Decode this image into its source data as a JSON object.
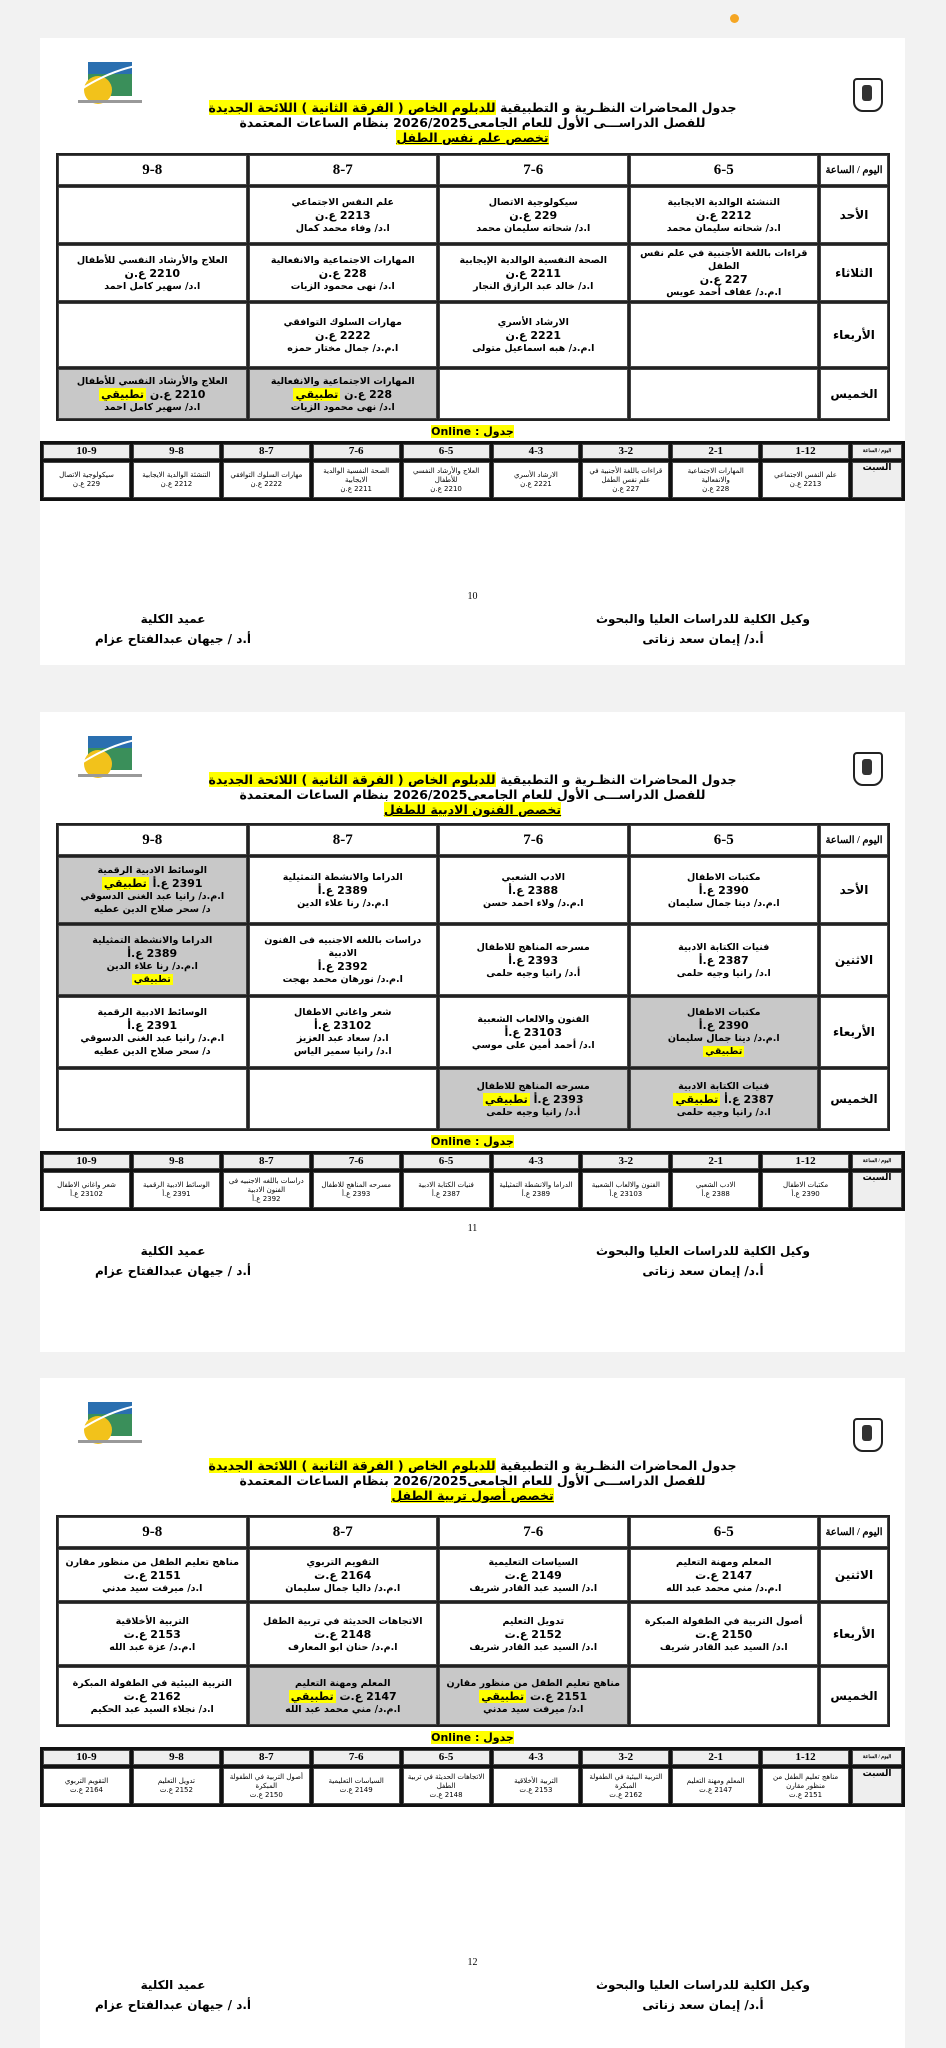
{
  "common": {
    "title_line1_a": "جدول المحاضرات النظـرية و التطبيقية ",
    "title_line1_b": "للدبلوم الخاص ( الفرقة الثانية ) اللائحة الجديدة",
    "title_line2": "للفصل الدراســـى الأول للعام الجامعى2026/2025 بنظام الساعات المعتمدة",
    "corner": "اليوم / الساعة",
    "main_slots": [
      "6-5",
      "7-6",
      "8-7",
      "9-8"
    ],
    "online_label": "جدول : Online",
    "online_corner": "اليوم / الساعة",
    "online_day": "السبت",
    "online_slots": [
      "1-12",
      "2-1",
      "3-2",
      "4-3",
      "6-5",
      "7-6",
      "8-7",
      "9-8",
      "10-9"
    ],
    "sig_right_title": "وكيل الكلية للدراسات العليا والبحوث",
    "sig_right_name": "أ.د/ إيمان سعد زناتى",
    "sig_left_title": "عميد الكلية",
    "sig_left_name": "أ.د / جيهان عبدالفتاح عزام",
    "practical_tag": "تطبيقي",
    "colors": {
      "highlight": "#ffff00",
      "shaded_cell": "#c8c8c8",
      "notification_dot": "#f5a623"
    }
  },
  "pages": [
    {
      "page_number": "10",
      "specialization": "تخصص علم نفس الطفل",
      "rows": [
        {
          "day": "الأحد",
          "cells": [
            {
              "course": "التنشئة الوالدية الايجابية",
              "code": "2212 ع.ن",
              "instructors": [
                "ا.د/ شحاته سليمان محمد"
              ]
            },
            {
              "course": "سيكولوجية الاتصال",
              "code": "229 ع.ن",
              "instructors": [
                "ا.د/ شحاته سليمان محمد"
              ]
            },
            {
              "course": "علم النفس الاجتماعي",
              "code": "2213 ع.ن",
              "instructors": [
                "ا.د/ وفاء محمد كمال"
              ]
            },
            {}
          ]
        },
        {
          "day": "الثلاثاء",
          "cells": [
            {
              "course": "قراءات باللغة الأجنبية في علم نفس الطفل",
              "code": "227 ع.ن",
              "instructors": [
                "ا.م.د/ عفاف أحمد عويس"
              ]
            },
            {
              "course": "الصحة النفسية الوالدية الإيجابية",
              "code": "2211 ع.ن",
              "instructors": [
                "ا.د/ خالد عبد الرازق النجار"
              ]
            },
            {
              "course": "المهارات الاجتماعية والانفعالية",
              "code": "228 ع.ن",
              "instructors": [
                "ا.د/ نهى محمود الزيات"
              ]
            },
            {
              "course": "العلاج والأرشاد النفسي للأطفال",
              "code": "2210 ع.ن",
              "instructors": [
                "ا.د/ سهير كامل احمد"
              ]
            }
          ]
        },
        {
          "day": "الأربعاء",
          "cells": [
            {},
            {
              "course": "الارشاد الأسري",
              "code": "2221 ع.ن",
              "instructors": [
                "ا.م.د/ هبه اسماعيل متولى"
              ]
            },
            {
              "course": "مهارات السلوك التوافقي",
              "code": "2222 ع.ن",
              "instructors": [
                "ا.م.د/ جمال مختار حمزه"
              ]
            },
            {}
          ]
        },
        {
          "day": "الخميس",
          "cells": [
            {},
            {},
            {
              "course": "المهارات الاجتماعية والانفعالية",
              "code": "228 ع.ن",
              "practical": true,
              "shaded": true,
              "instructors": [
                "ا.د/ نهى محمود الزيات"
              ]
            },
            {
              "course": "العلاج والأرشاد النفسي للأطفال",
              "code": "2210 ع.ن",
              "practical": true,
              "shaded": true,
              "instructors": [
                "ا.د/ سهير كامل احمد"
              ]
            }
          ]
        }
      ],
      "online": [
        {
          "course": "علم النفس الاجتماعي",
          "code": "2213 ع.ن"
        },
        {
          "course": "المهارات الاجتماعية والانفعالية",
          "code": "228 ع.ن"
        },
        {
          "course": "قراءات باللغة الأجنبية في علم نفس الطفل",
          "code": "227 ع.ن"
        },
        {
          "course": "الارشاد الأسري",
          "code": "2221 ع.ن"
        },
        {
          "course": "العلاج والأرشاد النفسي للأطفال",
          "code": "2210 ع.ن"
        },
        {
          "course": "الصحة النفسية الوالدية الايجابية",
          "code": "2211 ع.ن"
        },
        {
          "course": "مهارات السلوك التوافقي",
          "code": "2222 ع.ن"
        },
        {
          "course": "التنشئة الوالدية الايجابية",
          "code": "2212 ع.ن"
        },
        {
          "course": "سيكولوجية الاتصال",
          "code": "229 ع.ن"
        }
      ]
    },
    {
      "page_number": "11",
      "specialization": "تخصص الفنون الادبية للطفل",
      "rows": [
        {
          "day": "الأحد",
          "cells": [
            {
              "course": "مكتبات الاطفال",
              "code": "2390 ع.أ",
              "instructors": [
                "ا.م.د/ دينا جمال سليمان"
              ]
            },
            {
              "course": "الادب الشعبي",
              "code": "2388 ع.أ",
              "instructors": [
                "ا.م.د/ ولاء احمد حسن"
              ]
            },
            {
              "course": "الدراما والانشطة التمثيلية",
              "code": "2389 ع.أ",
              "instructors": [
                "ا.م.د/ رنا علاء الدين"
              ]
            },
            {
              "course": "الوسائط الادبية الرقمية",
              "code": "2391 ع.أ",
              "practical": true,
              "shaded": true,
              "instructors": [
                "ا.م.د/ رانيا عبد الغنى الدسوقي",
                "د/ سحر صلاح الدين عطيه"
              ]
            }
          ]
        },
        {
          "day": "الاثنين",
          "cells": [
            {
              "course": "فنيات الكتابة الادبية",
              "code": "2387 ع.أ",
              "instructors": [
                "ا.د/ رانيا وجيه حلمى"
              ]
            },
            {
              "course": "مسرحه المناهج للاطفال",
              "code": "2393 ع.أ",
              "instructors": [
                "أ.د/ رانيا وجيه حلمى"
              ]
            },
            {
              "course": "دراسات باللغه الاجنبيه فى الفنون الادبية",
              "code": "2392 ع.أ",
              "instructors": [
                "ا.م.د/ نورهان محمد بهجت"
              ]
            },
            {
              "course": "الدراما والانشطة التمثيلية",
              "code": "2389 ع.أ",
              "practical_below": true,
              "shaded": true,
              "instructors": [
                "ا.م.د/ رنا علاء الدين"
              ]
            }
          ]
        },
        {
          "day": "الأربعاء",
          "cells": [
            {
              "course": "مكتبات الاطفال",
              "code": "2390 ع.أ",
              "practical_below": true,
              "shaded": true,
              "instructors": [
                "ا.م.د/ دينا جمال سليمان"
              ]
            },
            {
              "course": "الفنون والالعاب الشعبية",
              "code": "23103 ع.أ",
              "instructors": [
                "ا.د/ أحمد أمين على موسي"
              ]
            },
            {
              "course": "شعر واغاني الاطفال",
              "code": "23102 ع.أ",
              "instructors": [
                "ا.د/ سعاد عبد العزيز",
                "ا.د/ رانيا سمير الياس"
              ]
            },
            {
              "course": "الوسائط الادبية الرقمية",
              "code": "2391 ع.أ",
              "instructors": [
                "ا.م.د/ رانيا عبد الغنى الدسوقي",
                "د/ سحر صلاح الدين عطيه"
              ]
            }
          ]
        },
        {
          "day": "الخميس",
          "cells": [
            {
              "course": "فنيات الكتابة الادبية",
              "code": "2387 ع.أ",
              "practical": true,
              "shaded": true,
              "instructors": [
                "ا.د/ رانيا وجيه حلمى"
              ]
            },
            {
              "course": "مسرحه المناهج للاطفال",
              "code": "2393 ع.أ",
              "practical": true,
              "shaded": true,
              "instructors": [
                "أ.د/ رانيا وجيه حلمى"
              ]
            },
            {},
            {}
          ]
        }
      ],
      "online": [
        {
          "course": "مكتبات الاطفال",
          "code": "2390 ع.أ"
        },
        {
          "course": "الادب الشعبي",
          "code": "2388 ع.أ"
        },
        {
          "course": "الفنون والالعاب الشعبية",
          "code": "23103 ع.أ"
        },
        {
          "course": "الدراما والانشطة التمثيلية",
          "code": "2389 ع.أ"
        },
        {
          "course": "فنيات الكتابة الادبية",
          "code": "2387 ع.أ"
        },
        {
          "course": "مسرحه المناهج للاطفال",
          "code": "2393 ع.أ"
        },
        {
          "course": "دراسات باللغه الاجنبيه فى الفنون الادبية",
          "code": "2392 ع.أ"
        },
        {
          "course": "الوسائط الادبية الرقمية",
          "code": "2391 ع.أ"
        },
        {
          "course": "شعر واغاني الاطفال",
          "code": "23102 ع.أ"
        }
      ]
    },
    {
      "page_number": "12",
      "specialization": "تخصص أصول تربية الطفل",
      "rows": [
        {
          "day": "الاثنين",
          "cells": [
            {
              "course": "المعلم ومهنة التعليم",
              "code": "2147 ع.ت",
              "instructors": [
                "ا.م.د/ مني محمد عبد الله"
              ]
            },
            {
              "course": "السياسات التعليمية",
              "code": "2149 ع.ت",
              "instructors": [
                "ا.د/ السيد عبد القادر شريف"
              ]
            },
            {
              "course": "التقويم التربوي",
              "code": "2164 ع.ت",
              "instructors": [
                "ا.م.د/ داليا جمال سليمان"
              ]
            },
            {
              "course": "مناهج تعليم الطفل من منظور مقارن",
              "code": "2151 ع.ت",
              "instructors": [
                "ا.د/ ميرفت سيد مدني"
              ]
            }
          ]
        },
        {
          "day": "الأربعاء",
          "cells": [
            {
              "course": "أصول التربية في الطفولة المبكرة",
              "code": "2150 ع.ت",
              "instructors": [
                "ا.د/ السيد عبد القادر شريف"
              ]
            },
            {
              "course": "تدويل التعليم",
              "code": "2152 ع.ت",
              "instructors": [
                "ا.د/ السيد عبد القادر شريف"
              ]
            },
            {
              "course": "الاتجاهات الحديثة في تربية الطفل",
              "code": "2148 ع.ت",
              "instructors": [
                "ا.م.د/ حنان ابو المعارف"
              ]
            },
            {
              "course": "التربية الأخلاقية",
              "code": "2153 ع.ت",
              "instructors": [
                "ا.م.د/ عزة عبد الله"
              ]
            }
          ]
        },
        {
          "day": "الخميس",
          "cells": [
            {},
            {
              "course": "مناهج تعليم الطفل من منظور مقارن",
              "code": "2151 ع.ت",
              "practical": true,
              "shaded": true,
              "instructors": [
                "ا.د/ ميرفت سيد مدني"
              ]
            },
            {
              "course": "المعلم ومهنة التعليم",
              "code": "2147 ع.ت",
              "practical": true,
              "shaded": true,
              "instructors": [
                "ا.م.د/ مني محمد عبد الله"
              ]
            },
            {
              "course": "التربية البيئية في الطفولة المبكرة",
              "code": "2162 ع.ت",
              "instructors": [
                "ا.د/ نجلاء السيد عبد الحكيم"
              ]
            }
          ]
        }
      ],
      "online": [
        {
          "course": "مناهج تعليم الطفل من منظور مقارن",
          "code": "2151 ع.ت"
        },
        {
          "course": "المعلم ومهنة التعليم",
          "code": "2147 ع.ت"
        },
        {
          "course": "التربية البيئية في الطفولة المبكرة",
          "code": "2162 ع.ت"
        },
        {
          "course": "التربية الأخلاقية",
          "code": "2153 ع.ت"
        },
        {
          "course": "الاتجاهات الحديثة في تربية الطفل",
          "code": "2148 ع.ت"
        },
        {
          "course": "السياسات التعليمية",
          "code": "2149 ع.ت"
        },
        {
          "course": "أصول التربية في الطفولة المبكرة",
          "code": "2150 ع.ت"
        },
        {
          "course": "تدويل التعليم",
          "code": "2152 ع.ت"
        },
        {
          "course": "التقويم التربوي",
          "code": "2164 ع.ت"
        }
      ]
    }
  ]
}
